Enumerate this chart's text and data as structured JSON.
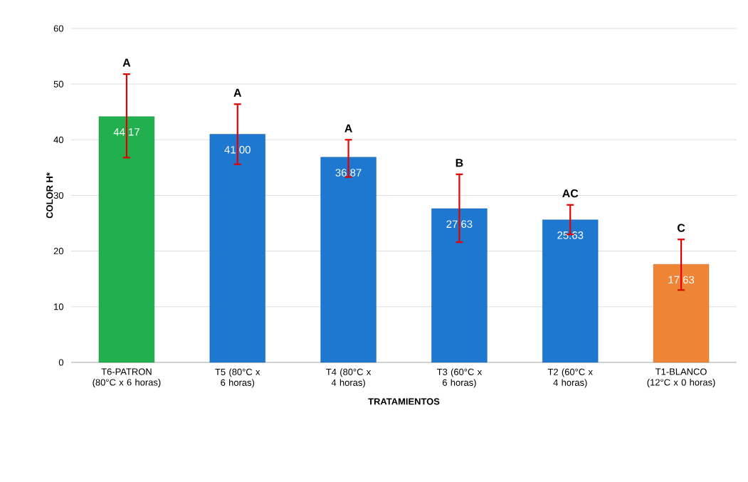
{
  "chart_data": {
    "type": "bar",
    "xlabel": "TRATAMIENTOS",
    "ylabel": "COLOR H*",
    "categories": [
      "T6-PATRON (80°C x 6 horas)",
      "T5 (80°C x 6 horas)",
      "T4 (80°C x 4 horas)",
      "T3 (60°C x 6 horas)",
      "T2 (60°C x 4 horas)",
      "T1-BLANCO (12°C x 0 horas)"
    ],
    "values": [
      44.17,
      41.0,
      36.87,
      27.63,
      25.63,
      17.63
    ],
    "value_labels": [
      "44.17",
      "41.00",
      "36.87",
      "27.63",
      "25.63",
      "17.63"
    ],
    "colors": [
      "#22b04f",
      "#1f78cf",
      "#1f78cf",
      "#1f78cf",
      "#1f78cf",
      "#ee8435"
    ],
    "errors": [
      [
        36.8,
        51.8
      ],
      [
        35.6,
        46.4
      ],
      [
        33.3,
        40.0
      ],
      [
        21.6,
        33.8
      ],
      [
        23.0,
        28.3
      ],
      [
        13.0,
        22.1
      ]
    ],
    "annotations": [
      "A",
      "A",
      "A",
      "B",
      "AC",
      "C"
    ],
    "ylim": [
      0,
      60
    ],
    "yticks": [
      0,
      10,
      20,
      30,
      40,
      50,
      60
    ],
    "grid": "y"
  }
}
